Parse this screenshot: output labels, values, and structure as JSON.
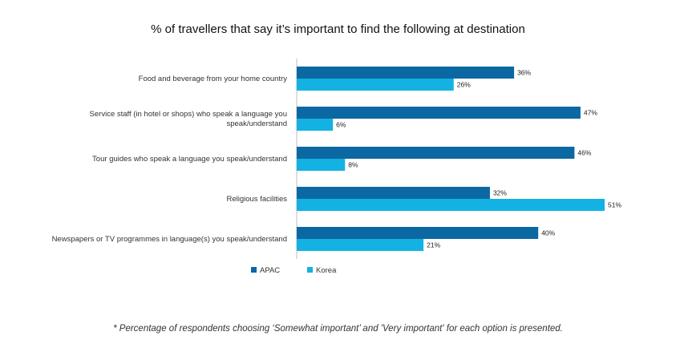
{
  "chart_data": {
    "type": "bar",
    "orientation": "horizontal",
    "title": "% of travellers that say it’s important to find the following at destination",
    "categories": [
      [
        "Food and beverage from your home country"
      ],
      [
        "Service staff (in hotel or shops) who speak a language you",
        "speak/understand"
      ],
      [
        "Tour guides who speak a language you speak/understand"
      ],
      [
        "Religious facilities"
      ],
      [
        "Newspapers or TV programmes in language(s) you speak/understand"
      ]
    ],
    "series": [
      {
        "name": "APAC",
        "values": [
          36,
          47,
          46,
          32,
          40
        ],
        "labels": [
          "36%",
          "47%",
          "46%",
          "32%",
          "40%"
        ],
        "color": "#0b68a2"
      },
      {
        "name": "Korea",
        "values": [
          26,
          6,
          8,
          51,
          21
        ],
        "labels": [
          "26%",
          "6%",
          "8%",
          "51%",
          "21%"
        ],
        "color": "#13b2e3"
      }
    ],
    "xlim": [
      0,
      52
    ],
    "grid": false,
    "legend_position": "bottom-center"
  },
  "footnote": "* Percentage of respondents choosing ‘Somewhat important’ and 'Very important' for each option is presented."
}
